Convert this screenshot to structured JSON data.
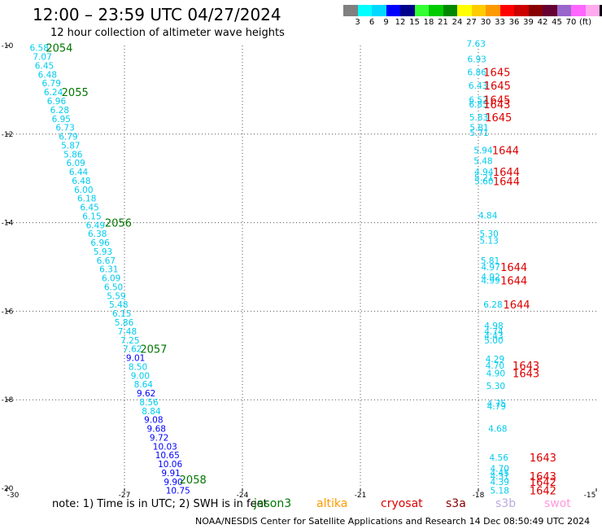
{
  "header": {
    "title": "12:00 – 23:59 UTC 04/27/2024",
    "subtitle": "12 hour collection of altimeter wave heights"
  },
  "colorbar": {
    "colors": [
      "#808080",
      "#00ffff",
      "#00d8ff",
      "#0000ff",
      "#00008b",
      "#33ff33",
      "#00cc00",
      "#008800",
      "#ffff00",
      "#ffcc00",
      "#ff9900",
      "#ff0000",
      "#cc0000",
      "#880000",
      "#660033",
      "#9966cc",
      "#ff66ff",
      "#ffaaee",
      "#000000"
    ],
    "labels": [
      "3",
      "6",
      "9",
      "12",
      "15",
      "18",
      "21",
      "24",
      "27",
      "30",
      "33",
      "36",
      "39",
      "42",
      "45",
      "70"
    ],
    "unit": "(ft)"
  },
  "note": "note: 1) Time is in UTC; 2) SWH is in feet",
  "satellites": [
    {
      "name": "jason3",
      "color": "#007700"
    },
    {
      "name": "altika",
      "color": "#ff9900"
    },
    {
      "name": "cryosat",
      "color": "#dd0000"
    },
    {
      "name": "s3a",
      "color": "#880000"
    },
    {
      "name": "s3b",
      "color": "#bbaadd"
    },
    {
      "name": "swot",
      "color": "#ff99dd"
    }
  ],
  "footer": "NOAA/NESDIS Center for Satellite Applications and Research   14 Dec 08:50:49 UTC 2024",
  "chart_data": {
    "type": "scatter",
    "title": "12:00 – 23:59 UTC 04/27/2024",
    "subtitle": "12 hour collection of altimeter wave heights",
    "xlim": [
      -30,
      -15
    ],
    "ylim": [
      -20,
      -10
    ],
    "x_ticks": [
      "-30",
      "-27",
      "-24",
      "-21",
      "-18",
      "-15"
    ],
    "y_ticks": [
      "-10",
      "-12",
      "-14",
      "-16",
      "-18",
      "-20"
    ],
    "grid": true,
    "series": [
      {
        "name": "jason3",
        "points": [
          {
            "x": -29.41,
            "y": -10.05,
            "v": "6.58",
            "c": "#00ccee"
          },
          {
            "x": -29.33,
            "y": -10.25,
            "v": "7.07",
            "c": "#00ccee"
          },
          {
            "x": -29.28,
            "y": -10.45,
            "v": "6.45",
            "c": "#00ccee"
          },
          {
            "x": -29.2,
            "y": -10.65,
            "v": "6.48",
            "c": "#00ccee"
          },
          {
            "x": -29.1,
            "y": -10.85,
            "v": "6.79",
            "c": "#00ccee"
          },
          {
            "x": -29.05,
            "y": -11.05,
            "v": "6.24",
            "c": "#00ccee"
          },
          {
            "x": -28.97,
            "y": -11.25,
            "v": "6.96",
            "c": "#00ccee"
          },
          {
            "x": -28.89,
            "y": -11.45,
            "v": "6.28",
            "c": "#00ccee"
          },
          {
            "x": -28.85,
            "y": -11.65,
            "v": "6.95",
            "c": "#00ccee"
          },
          {
            "x": -28.75,
            "y": -11.85,
            "v": "6.73",
            "c": "#00ccee"
          },
          {
            "x": -28.67,
            "y": -12.05,
            "v": "6.79",
            "c": "#00ccee"
          },
          {
            "x": -28.61,
            "y": -12.25,
            "v": "5.87",
            "c": "#00ccee"
          },
          {
            "x": -28.55,
            "y": -12.45,
            "v": "5.86",
            "c": "#00ccee"
          },
          {
            "x": -28.48,
            "y": -12.65,
            "v": "6.09",
            "c": "#00ccee"
          },
          {
            "x": -28.41,
            "y": -12.85,
            "v": "6.44",
            "c": "#00ccee"
          },
          {
            "x": -28.34,
            "y": -13.05,
            "v": "6.48",
            "c": "#00ccee"
          },
          {
            "x": -28.28,
            "y": -13.25,
            "v": "6.00",
            "c": "#00ccee"
          },
          {
            "x": -28.2,
            "y": -13.45,
            "v": "6.18",
            "c": "#00ccee"
          },
          {
            "x": -28.13,
            "y": -13.65,
            "v": "6.45",
            "c": "#00ccee"
          },
          {
            "x": -28.07,
            "y": -13.85,
            "v": "6.15",
            "c": "#00ccee"
          },
          {
            "x": -27.98,
            "y": -14.05,
            "v": "6.49",
            "c": "#00ccee"
          },
          {
            "x": -27.93,
            "y": -14.25,
            "v": "6.38",
            "c": "#00ccee"
          },
          {
            "x": -27.86,
            "y": -14.45,
            "v": "6.96",
            "c": "#00ccee"
          },
          {
            "x": -27.79,
            "y": -14.65,
            "v": "5.93",
            "c": "#00ccee"
          },
          {
            "x": -27.71,
            "y": -14.85,
            "v": "6.67",
            "c": "#00ccee"
          },
          {
            "x": -27.64,
            "y": -15.05,
            "v": "6.31",
            "c": "#00ccee"
          },
          {
            "x": -27.58,
            "y": -15.25,
            "v": "6.09",
            "c": "#00ccee"
          },
          {
            "x": -27.52,
            "y": -15.45,
            "v": "6.50",
            "c": "#00ccee"
          },
          {
            "x": -27.45,
            "y": -15.65,
            "v": "5.59",
            "c": "#00ccee"
          },
          {
            "x": -27.39,
            "y": -15.85,
            "v": "5.48",
            "c": "#00ccee"
          },
          {
            "x": -27.31,
            "y": -16.05,
            "v": "6.15",
            "c": "#00ccee"
          },
          {
            "x": -27.25,
            "y": -16.25,
            "v": "5.86",
            "c": "#00ccee"
          },
          {
            "x": -27.17,
            "y": -16.45,
            "v": "7.48",
            "c": "#00ccee"
          },
          {
            "x": -27.1,
            "y": -16.65,
            "v": "7.25",
            "c": "#00ccee"
          },
          {
            "x": -27.04,
            "y": -16.85,
            "v": "7.62",
            "c": "#00ccee"
          },
          {
            "x": -26.96,
            "y": -17.05,
            "v": "9.01",
            "c": "#0000ff"
          },
          {
            "x": -26.9,
            "y": -17.25,
            "v": "8.50",
            "c": "#00ccee"
          },
          {
            "x": -26.84,
            "y": -17.45,
            "v": "9.00",
            "c": "#00ccee"
          },
          {
            "x": -26.76,
            "y": -17.65,
            "v": "8.64",
            "c": "#00ccee"
          },
          {
            "x": -26.69,
            "y": -17.85,
            "v": "9.62",
            "c": "#0000ff"
          },
          {
            "x": -26.62,
            "y": -18.05,
            "v": "8.56",
            "c": "#00ccee"
          },
          {
            "x": -26.56,
            "y": -18.25,
            "v": "8.84",
            "c": "#00ccee"
          },
          {
            "x": -26.5,
            "y": -18.45,
            "v": "9.08",
            "c": "#0000ff"
          },
          {
            "x": -26.43,
            "y": -18.65,
            "v": "9.68",
            "c": "#0000ff"
          },
          {
            "x": -26.36,
            "y": -18.85,
            "v": "9.72",
            "c": "#0000ff"
          },
          {
            "x": -26.28,
            "y": -19.05,
            "v": "10.03",
            "c": "#0000ff"
          },
          {
            "x": -26.22,
            "y": -19.25,
            "v": "10.65",
            "c": "#0000ff"
          },
          {
            "x": -26.15,
            "y": -19.45,
            "v": "10.06",
            "c": "#0000ff"
          },
          {
            "x": -26.06,
            "y": -19.65,
            "v": "9.91",
            "c": "#0000ff"
          },
          {
            "x": -26.0,
            "y": -19.85,
            "v": "9.90",
            "c": "#0000ff"
          },
          {
            "x": -25.95,
            "y": -20.05,
            "v": "10.75",
            "c": "#0000ff"
          }
        ],
        "time_labels": [
          {
            "x": -29.0,
            "y": -10.05,
            "v": "2054"
          },
          {
            "x": -28.6,
            "y": -11.05,
            "v": "2055"
          },
          {
            "x": -27.5,
            "y": -14.0,
            "v": "2056"
          },
          {
            "x": -26.6,
            "y": -16.85,
            "v": "2057"
          },
          {
            "x": -25.6,
            "y": -19.8,
            "v": "2058"
          }
        ]
      },
      {
        "name": "cryosat",
        "points": [
          {
            "x": -18.3,
            "y": -9.95,
            "v": "7.63",
            "c": "#00ccee"
          },
          {
            "x": -18.28,
            "y": -10.3,
            "v": "6.93",
            "c": "#00ccee"
          },
          {
            "x": -18.28,
            "y": -10.6,
            "v": "6.86",
            "c": "#00ccee"
          },
          {
            "x": -18.25,
            "y": -10.9,
            "v": "6.43",
            "c": "#00ccee"
          },
          {
            "x": -18.24,
            "y": -11.22,
            "v": "6.57",
            "c": "#00ccee"
          },
          {
            "x": -18.24,
            "y": -11.32,
            "v": "6.85",
            "c": "#00ccee"
          },
          {
            "x": -18.23,
            "y": -11.62,
            "v": "5.83",
            "c": "#00ccee"
          },
          {
            "x": -18.22,
            "y": -11.85,
            "v": "5.81",
            "c": "#00ccee"
          },
          {
            "x": -18.22,
            "y": -11.97,
            "v": "5.71",
            "c": "#00ccee"
          },
          {
            "x": -18.12,
            "y": -12.36,
            "v": "5.94",
            "c": "#00ccee"
          },
          {
            "x": -18.12,
            "y": -12.6,
            "v": "5.48",
            "c": "#00ccee"
          },
          {
            "x": -18.1,
            "y": -12.85,
            "v": "4.94",
            "c": "#00ccee"
          },
          {
            "x": -18.1,
            "y": -12.98,
            "v": "5.21",
            "c": "#00ccee"
          },
          {
            "x": -18.1,
            "y": -13.06,
            "v": "5.60",
            "c": "#00ccee"
          },
          {
            "x": -18.0,
            "y": -13.83,
            "v": "4.84",
            "c": "#00ccee"
          },
          {
            "x": -17.97,
            "y": -14.25,
            "v": "5.30",
            "c": "#00ccee"
          },
          {
            "x": -17.97,
            "y": -14.4,
            "v": "5.13",
            "c": "#00ccee"
          },
          {
            "x": -17.94,
            "y": -14.85,
            "v": "5.81",
            "c": "#00ccee"
          },
          {
            "x": -17.93,
            "y": -15.0,
            "v": "4.97",
            "c": "#00ccee"
          },
          {
            "x": -17.93,
            "y": -15.22,
            "v": "4.92",
            "c": "#00ccee"
          },
          {
            "x": -17.93,
            "y": -15.3,
            "v": "4.99",
            "c": "#00ccee"
          },
          {
            "x": -17.87,
            "y": -15.85,
            "v": "6.28",
            "c": "#00ccee"
          },
          {
            "x": -17.85,
            "y": -16.32,
            "v": "4.98",
            "c": "#00ccee"
          },
          {
            "x": -17.85,
            "y": -16.45,
            "v": "4.74",
            "c": "#00ccee"
          },
          {
            "x": -17.85,
            "y": -16.55,
            "v": "4.43",
            "c": "#00ccee"
          },
          {
            "x": -17.85,
            "y": -16.65,
            "v": "5.00",
            "c": "#00ccee"
          },
          {
            "x": -17.82,
            "y": -17.08,
            "v": "4.29",
            "c": "#00ccee"
          },
          {
            "x": -17.82,
            "y": -17.22,
            "v": "4.70",
            "c": "#00ccee"
          },
          {
            "x": -17.8,
            "y": -17.4,
            "v": "4.90",
            "c": "#00ccee"
          },
          {
            "x": -17.8,
            "y": -17.68,
            "v": "5.30",
            "c": "#00ccee"
          },
          {
            "x": -17.78,
            "y": -18.08,
            "v": "4.75",
            "c": "#00ccee"
          },
          {
            "x": -17.78,
            "y": -18.14,
            "v": "4.79",
            "c": "#00ccee"
          },
          {
            "x": -17.75,
            "y": -18.65,
            "v": "4.68",
            "c": "#00ccee"
          },
          {
            "x": -17.72,
            "y": -19.3,
            "v": "4.56",
            "c": "#00ccee"
          },
          {
            "x": -17.7,
            "y": -19.55,
            "v": "4.70",
            "c": "#00ccee"
          },
          {
            "x": -17.7,
            "y": -19.65,
            "v": "4.45",
            "c": "#00ccee"
          },
          {
            "x": -17.7,
            "y": -19.72,
            "v": "4.31",
            "c": "#00ccee"
          },
          {
            "x": -17.7,
            "y": -19.85,
            "v": "4.39",
            "c": "#00ccee"
          },
          {
            "x": -17.7,
            "y": -20.05,
            "v": "5.18",
            "c": "#00ccee"
          }
        ],
        "time_labels": [
          {
            "x": -17.87,
            "y": -10.6,
            "v": "1645"
          },
          {
            "x": -17.86,
            "y": -10.9,
            "v": "1645"
          },
          {
            "x": -17.87,
            "y": -11.22,
            "v": "1645"
          },
          {
            "x": -17.87,
            "y": -11.32,
            "v": "1643"
          },
          {
            "x": -17.83,
            "y": -11.62,
            "v": "1645"
          },
          {
            "x": -17.65,
            "y": -12.36,
            "v": "1644"
          },
          {
            "x": -17.63,
            "y": -12.85,
            "v": "1644"
          },
          {
            "x": -17.63,
            "y": -13.06,
            "v": "1644"
          },
          {
            "x": -17.44,
            "y": -15.0,
            "v": "1644"
          },
          {
            "x": -17.44,
            "y": -15.3,
            "v": "1644"
          },
          {
            "x": -17.37,
            "y": -15.85,
            "v": "1644"
          },
          {
            "x": -17.13,
            "y": -17.22,
            "v": "1643"
          },
          {
            "x": -17.13,
            "y": -17.4,
            "v": "1643"
          },
          {
            "x": -16.7,
            "y": -19.3,
            "v": "1643"
          },
          {
            "x": -16.7,
            "y": -19.72,
            "v": "1643"
          },
          {
            "x": -16.7,
            "y": -19.85,
            "v": "1642"
          },
          {
            "x": -16.7,
            "y": -20.05,
            "v": "1642"
          }
        ]
      }
    ]
  }
}
